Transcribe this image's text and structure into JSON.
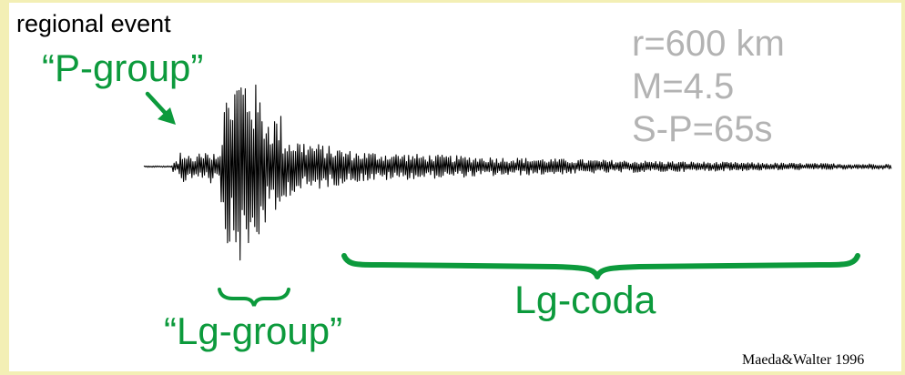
{
  "labels": {
    "caption": "regional event",
    "p_group": "“P-group”",
    "lg_group": "“Lg-group”",
    "lg_coda": "Lg-coda",
    "credit": "Maeda&Walter 1996"
  },
  "params": [
    "r=600 km",
    "M=4.5",
    "S-P=65s"
  ],
  "colors": {
    "annotation": "#0c9a3c",
    "params": "#b3b3b3",
    "trace": "#000000",
    "frame": "#f3efb5"
  },
  "icons": {
    "arrow": "arrow-down-right-icon"
  }
}
